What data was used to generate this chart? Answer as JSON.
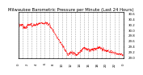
{
  "title": "Milwaukee Barometric Pressure per Minute (Last 24 Hours)",
  "line_color": "#ff0000",
  "bg_color": "#ffffff",
  "plot_bg": "#ffffff",
  "grid_color": "#aaaaaa",
  "tick_color": "#000000",
  "y_min": 29.0,
  "y_max": 30.65,
  "y_ticks": [
    29.0,
    29.2,
    29.4,
    29.6,
    29.8,
    30.0,
    30.2,
    30.4,
    30.6
  ],
  "y_tick_labels": [
    "29.0",
    "29.2",
    "29.4",
    "29.6",
    "29.8",
    "30.0",
    "30.2",
    "30.4",
    "30.6"
  ],
  "num_points": 1440,
  "title_fontsize": 3.8,
  "tick_fontsize": 2.8
}
